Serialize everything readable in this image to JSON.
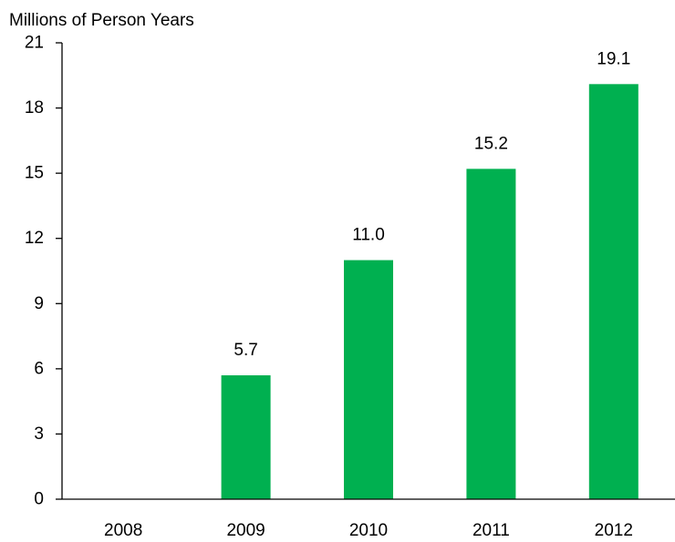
{
  "chart_data": {
    "type": "bar",
    "title": "",
    "ylabel": "Millions of Person Years",
    "xlabel": "",
    "categories": [
      "2008",
      "2009",
      "2010",
      "2011",
      "2012"
    ],
    "values": [
      0,
      5.7,
      11.0,
      15.2,
      19.1
    ],
    "data_labels": [
      "",
      "5.7",
      "11.0",
      "15.2",
      "19.1"
    ],
    "ylim": [
      0,
      21
    ],
    "yticks": [
      0,
      3,
      6,
      9,
      12,
      15,
      18,
      21
    ],
    "ytick_labels": [
      "0",
      "3",
      "6",
      "9",
      "12",
      "15",
      "18",
      "21"
    ],
    "grid": false,
    "legend": "none",
    "colors": {
      "bar": "#00b050",
      "axis": "#000000",
      "text": "#000000"
    }
  }
}
